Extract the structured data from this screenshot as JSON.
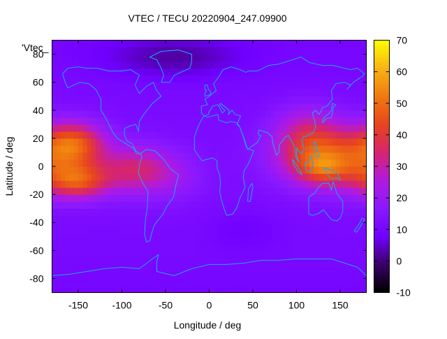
{
  "chart_data": {
    "type": "heatmap",
    "title": "VTEC / TECU 20220904_247.09900",
    "xlabel": "Longitude / deg",
    "ylabel": "Latitude / deg",
    "key_label": "'Vtec_",
    "xlim": [
      -180,
      180
    ],
    "ylim": [
      -90,
      90
    ],
    "x_ticks": [
      -150,
      -100,
      -50,
      0,
      50,
      100,
      150
    ],
    "y_ticks": [
      -80,
      -60,
      -40,
      -20,
      0,
      20,
      40,
      60,
      80
    ],
    "colorbar": {
      "range": [
        -10,
        70
      ],
      "ticks": [
        -10,
        0,
        10,
        20,
        30,
        40,
        50,
        60,
        70
      ]
    },
    "palette": [
      "#000000",
      "#3a0066",
      "#7000ff",
      "#8a19ff",
      "#b01ae0",
      "#d6256e",
      "#e8451c",
      "#f07a10",
      "#f8b414",
      "#ffff00"
    ],
    "coastline_color": "#1fa8f0",
    "lon_step_deg": 5,
    "lat_step_deg": 5,
    "vtec_blobs": [
      {
        "lon": -155,
        "lat": 16,
        "slon": 25,
        "slat": 11,
        "amp": 34
      },
      {
        "lon": -150,
        "lat": -10,
        "slon": 25,
        "slat": 9,
        "amp": 30
      },
      {
        "lon": -85,
        "lat": -2,
        "slon": 30,
        "slat": 12,
        "amp": 21
      },
      {
        "lon": -40,
        "lat": -8,
        "slon": 25,
        "slat": 12,
        "amp": 6
      },
      {
        "lon": 125,
        "lat": 10,
        "slon": 35,
        "slat": 15,
        "amp": 32
      },
      {
        "lon": 130,
        "lat": -2,
        "slon": 20,
        "slat": 8,
        "amp": 16
      },
      {
        "lon": 175,
        "lat": 0,
        "slon": 25,
        "slat": 14,
        "amp": 14
      },
      {
        "lon": 110,
        "lat": 30,
        "slon": 25,
        "slat": 12,
        "amp": 8
      },
      {
        "lon": -40,
        "lat": 78,
        "slon": 55,
        "slat": 10,
        "amp": -8
      },
      {
        "lon": 40,
        "lat": -45,
        "slon": 30,
        "slat": 10,
        "amp": -3
      }
    ]
  }
}
